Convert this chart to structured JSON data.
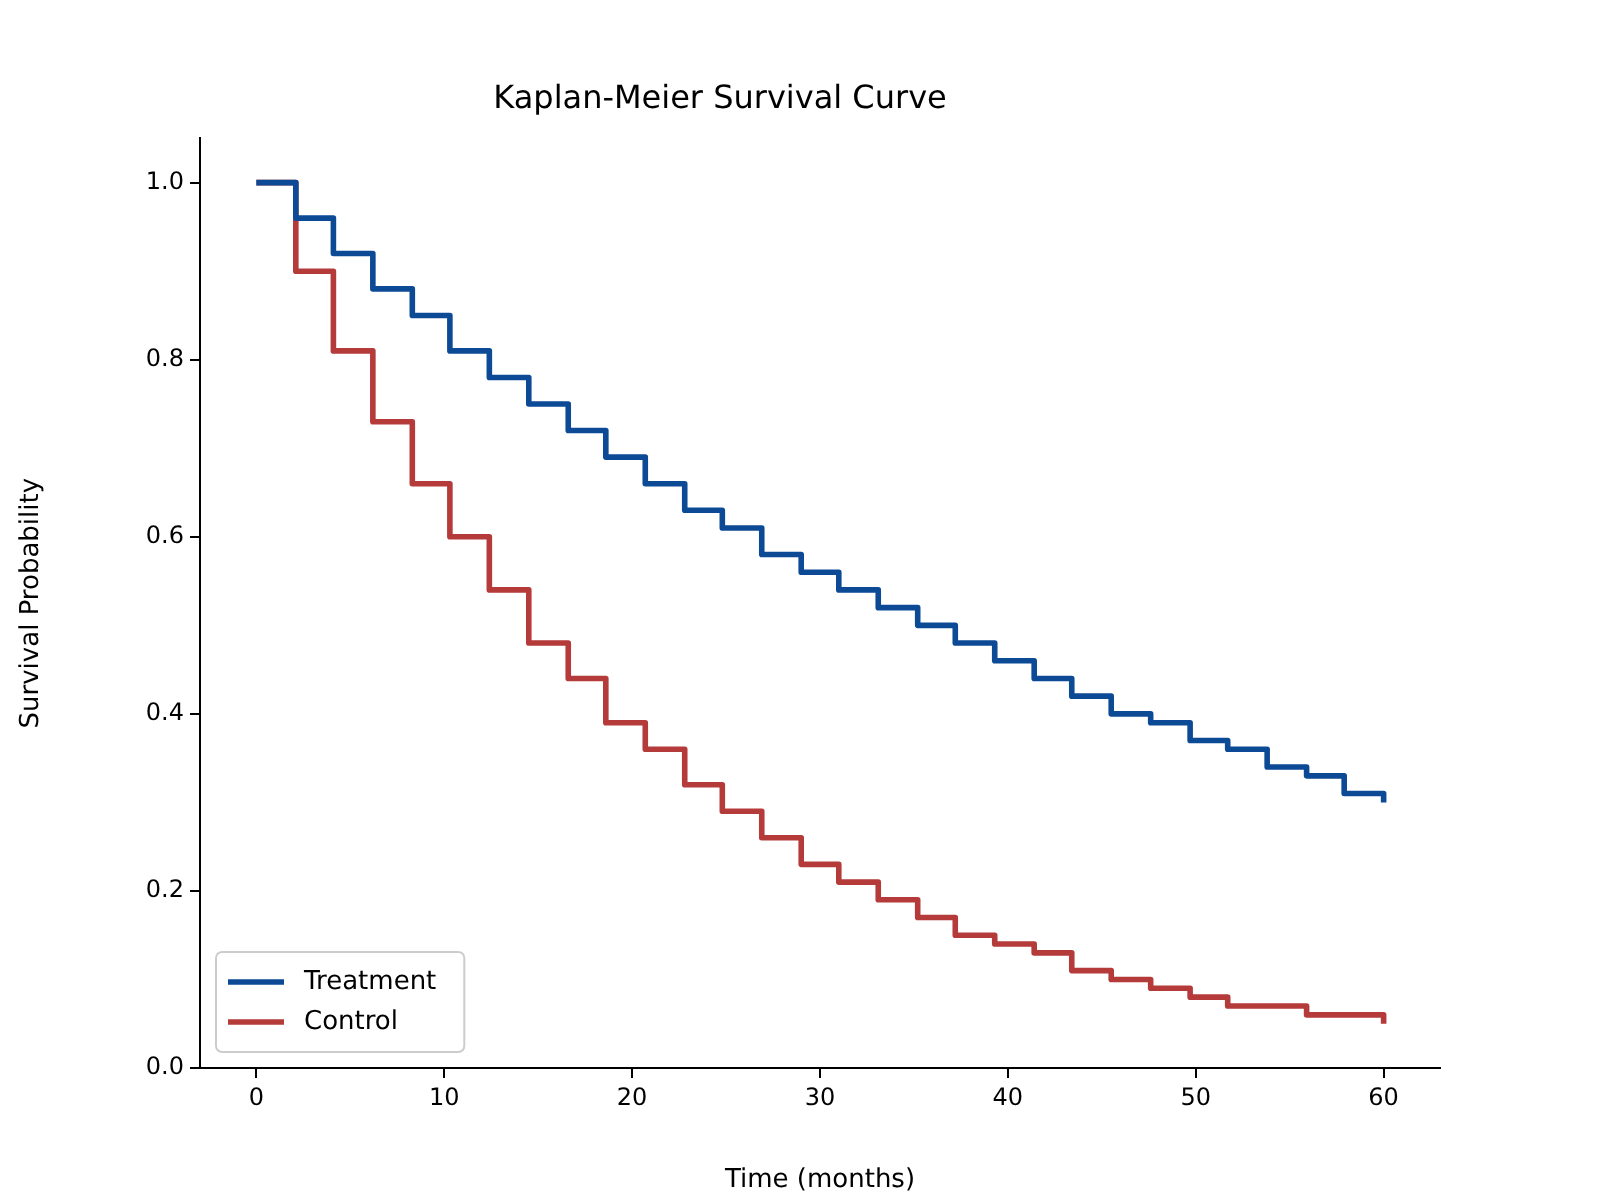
{
  "chart_data": {
    "type": "step",
    "title": "Kaplan-Meier Survival Curve",
    "xlabel": "Time (months)",
    "ylabel": "Survival Probability",
    "x": [
      0,
      2.1,
      4.1,
      6.2,
      8.3,
      10.3,
      12.4,
      14.5,
      16.6,
      18.6,
      20.7,
      22.8,
      24.8,
      26.9,
      29,
      31,
      33.1,
      35.2,
      37.2,
      39.3,
      41.4,
      43.4,
      45.5,
      47.6,
      49.7,
      51.7,
      53.8,
      55.9,
      57.9,
      60
    ],
    "series": [
      {
        "name": "Treatment",
        "color": "#0d4a96",
        "values": [
          1.0,
          0.96,
          0.92,
          0.88,
          0.85,
          0.81,
          0.78,
          0.75,
          0.72,
          0.69,
          0.66,
          0.63,
          0.61,
          0.58,
          0.56,
          0.54,
          0.52,
          0.5,
          0.48,
          0.46,
          0.44,
          0.42,
          0.4,
          0.39,
          0.37,
          0.36,
          0.34,
          0.33,
          0.31,
          0.3
        ]
      },
      {
        "name": "Control",
        "color": "#b53a3a",
        "values": [
          1.0,
          0.9,
          0.81,
          0.73,
          0.66,
          0.6,
          0.54,
          0.48,
          0.44,
          0.39,
          0.36,
          0.32,
          0.29,
          0.26,
          0.23,
          0.21,
          0.19,
          0.17,
          0.15,
          0.14,
          0.13,
          0.11,
          0.1,
          0.09,
          0.08,
          0.07,
          0.07,
          0.06,
          0.06,
          0.05
        ]
      }
    ],
    "xlim": [
      -3,
      63
    ],
    "xticks": [
      0,
      10,
      20,
      30,
      40,
      50,
      60
    ],
    "ylim": [
      0,
      1.05
    ],
    "yticks": [
      {
        "value": 0,
        "label": "0.0"
      },
      {
        "value": 0.2,
        "label": "0.2"
      },
      {
        "value": 0.4,
        "label": "0.4"
      },
      {
        "value": 0.6,
        "label": "0.6"
      },
      {
        "value": 0.8,
        "label": "0.8"
      },
      {
        "value": 1.0,
        "label": "1.0"
      }
    ],
    "grid": false,
    "legend": "bottom left",
    "marker": "none",
    "line_style": "solid"
  }
}
